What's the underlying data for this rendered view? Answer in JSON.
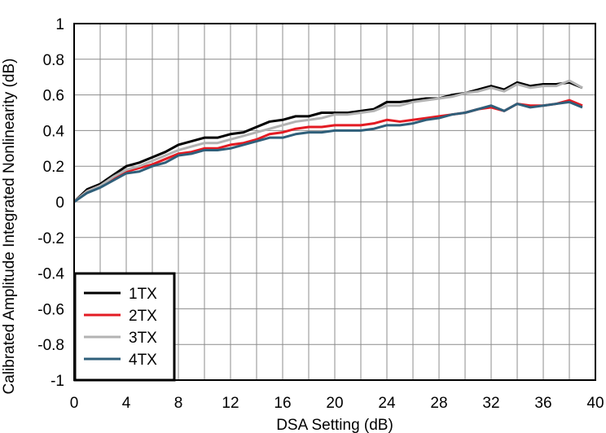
{
  "chart_data": {
    "type": "line",
    "title": "",
    "xlabel": "DSA Setting (dB)",
    "ylabel": "Calibrated Amplitude Integrated Nonlinearity (dB)",
    "xlim": [
      0,
      40
    ],
    "ylim": [
      -1,
      1
    ],
    "xticks": [
      0,
      4,
      8,
      12,
      16,
      20,
      24,
      28,
      32,
      36,
      40
    ],
    "yticks": [
      1,
      0.8,
      0.6,
      0.4,
      0.2,
      0,
      -0.2,
      -0.4,
      -0.6,
      -0.8,
      -1
    ],
    "xtick_labels": [
      "0",
      "4",
      "8",
      "12",
      "16",
      "20",
      "24",
      "28",
      "32",
      "36",
      "40"
    ],
    "ytick_labels": [
      "1",
      "0.8",
      "0.6",
      "0.4",
      "0.2",
      "0",
      "-0.2",
      "-0.4",
      "-0.6",
      "-0.8",
      "-1"
    ],
    "grid": true,
    "x_minor_grid_step": 2,
    "legend_position": "bottom-left",
    "x": [
      0,
      1,
      2,
      3,
      4,
      5,
      6,
      7,
      8,
      9,
      10,
      11,
      12,
      13,
      14,
      15,
      16,
      17,
      18,
      19,
      20,
      21,
      22,
      23,
      24,
      25,
      26,
      27,
      28,
      29,
      30,
      31,
      32,
      33,
      34,
      35,
      36,
      37,
      38,
      39
    ],
    "series": [
      {
        "name": "1TX",
        "color": "#000000",
        "values": [
          0.0,
          0.07,
          0.1,
          0.15,
          0.2,
          0.22,
          0.25,
          0.28,
          0.32,
          0.34,
          0.36,
          0.36,
          0.38,
          0.39,
          0.42,
          0.45,
          0.46,
          0.48,
          0.48,
          0.5,
          0.5,
          0.5,
          0.51,
          0.52,
          0.56,
          0.56,
          0.57,
          0.58,
          0.58,
          0.6,
          0.61,
          0.63,
          0.65,
          0.63,
          0.67,
          0.65,
          0.66,
          0.66,
          0.67,
          0.64
        ]
      },
      {
        "name": "2TX",
        "color": "#e31b23",
        "values": [
          0.0,
          0.06,
          0.09,
          0.13,
          0.17,
          0.19,
          0.21,
          0.24,
          0.27,
          0.28,
          0.3,
          0.3,
          0.32,
          0.33,
          0.35,
          0.38,
          0.39,
          0.41,
          0.42,
          0.42,
          0.43,
          0.43,
          0.43,
          0.44,
          0.46,
          0.45,
          0.46,
          0.47,
          0.48,
          0.49,
          0.5,
          0.52,
          0.53,
          0.51,
          0.55,
          0.54,
          0.54,
          0.55,
          0.57,
          0.54
        ]
      },
      {
        "name": "3TX",
        "color": "#b3b3b3",
        "values": [
          0.0,
          0.06,
          0.09,
          0.14,
          0.18,
          0.2,
          0.23,
          0.26,
          0.29,
          0.31,
          0.33,
          0.33,
          0.35,
          0.37,
          0.39,
          0.41,
          0.43,
          0.45,
          0.46,
          0.47,
          0.49,
          0.49,
          0.5,
          0.51,
          0.54,
          0.54,
          0.56,
          0.57,
          0.58,
          0.59,
          0.61,
          0.62,
          0.64,
          0.62,
          0.66,
          0.64,
          0.65,
          0.65,
          0.68,
          0.64
        ]
      },
      {
        "name": "4TX",
        "color": "#2f5f7a",
        "values": [
          0.0,
          0.05,
          0.08,
          0.12,
          0.16,
          0.17,
          0.2,
          0.22,
          0.26,
          0.27,
          0.29,
          0.29,
          0.3,
          0.32,
          0.34,
          0.36,
          0.36,
          0.38,
          0.39,
          0.39,
          0.4,
          0.4,
          0.4,
          0.41,
          0.43,
          0.43,
          0.44,
          0.46,
          0.47,
          0.49,
          0.5,
          0.52,
          0.54,
          0.51,
          0.55,
          0.53,
          0.54,
          0.55,
          0.56,
          0.53
        ]
      }
    ]
  }
}
